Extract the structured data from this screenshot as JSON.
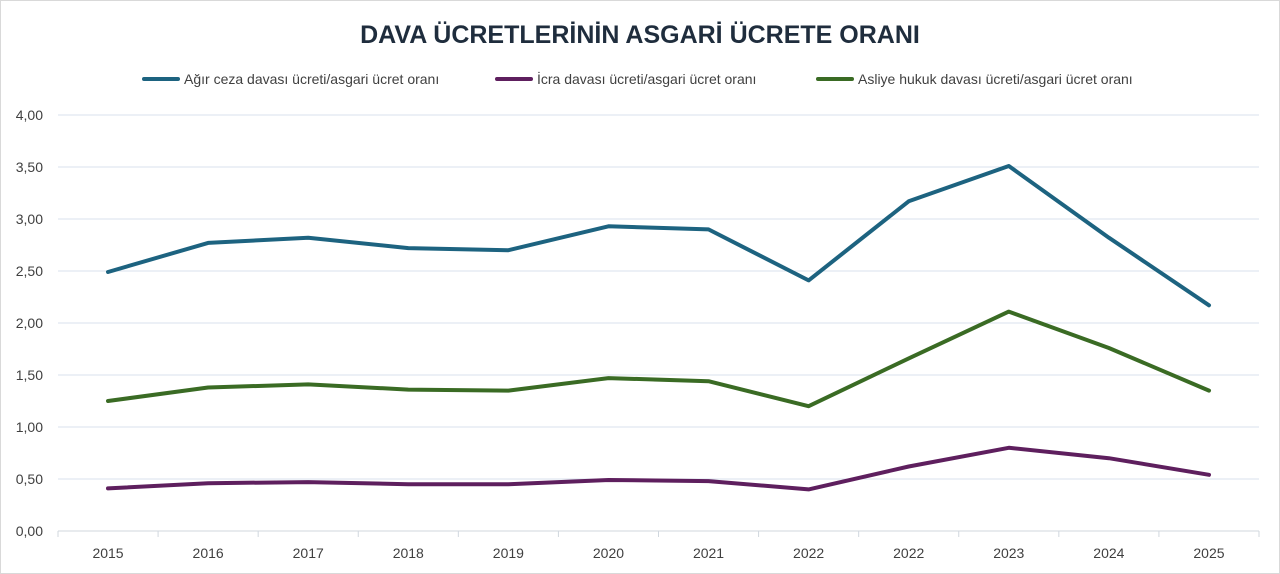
{
  "chart_data": {
    "type": "line",
    "title": "DAVA ÜCRETLERİNİN ASGARİ ÜCRETE ORANI",
    "xlabel": "",
    "ylabel": "",
    "categories": [
      "2015",
      "2016",
      "2017",
      "2018",
      "2019",
      "2020",
      "2021",
      "2022",
      "2022",
      "2023",
      "2024",
      "2025"
    ],
    "ylim": [
      0,
      4
    ],
    "yticks": [
      "0,00",
      "0,50",
      "1,00",
      "1,50",
      "2,00",
      "2,50",
      "3,00",
      "3,50",
      "4,00"
    ],
    "grid": true,
    "legend_position": "top",
    "series": [
      {
        "name": "Ağır ceza davası ücreti/asgari ücret oranı",
        "color": "#1d6380",
        "values": [
          2.49,
          2.77,
          2.82,
          2.72,
          2.7,
          2.93,
          2.9,
          2.41,
          3.17,
          3.51,
          2.82,
          2.17
        ]
      },
      {
        "name": "İcra davası ücreti/asgari ücret oranı",
        "color": "#5e1f5e",
        "values": [
          0.41,
          0.46,
          0.47,
          0.45,
          0.45,
          0.49,
          0.48,
          0.4,
          0.62,
          0.8,
          0.7,
          0.54
        ]
      },
      {
        "name": "Asliye hukuk davası ücreti/asgari ücret oranı",
        "color": "#3a6b24",
        "values": [
          1.25,
          1.38,
          1.41,
          1.36,
          1.35,
          1.47,
          1.44,
          1.2,
          1.66,
          2.11,
          1.76,
          1.35
        ]
      }
    ]
  }
}
